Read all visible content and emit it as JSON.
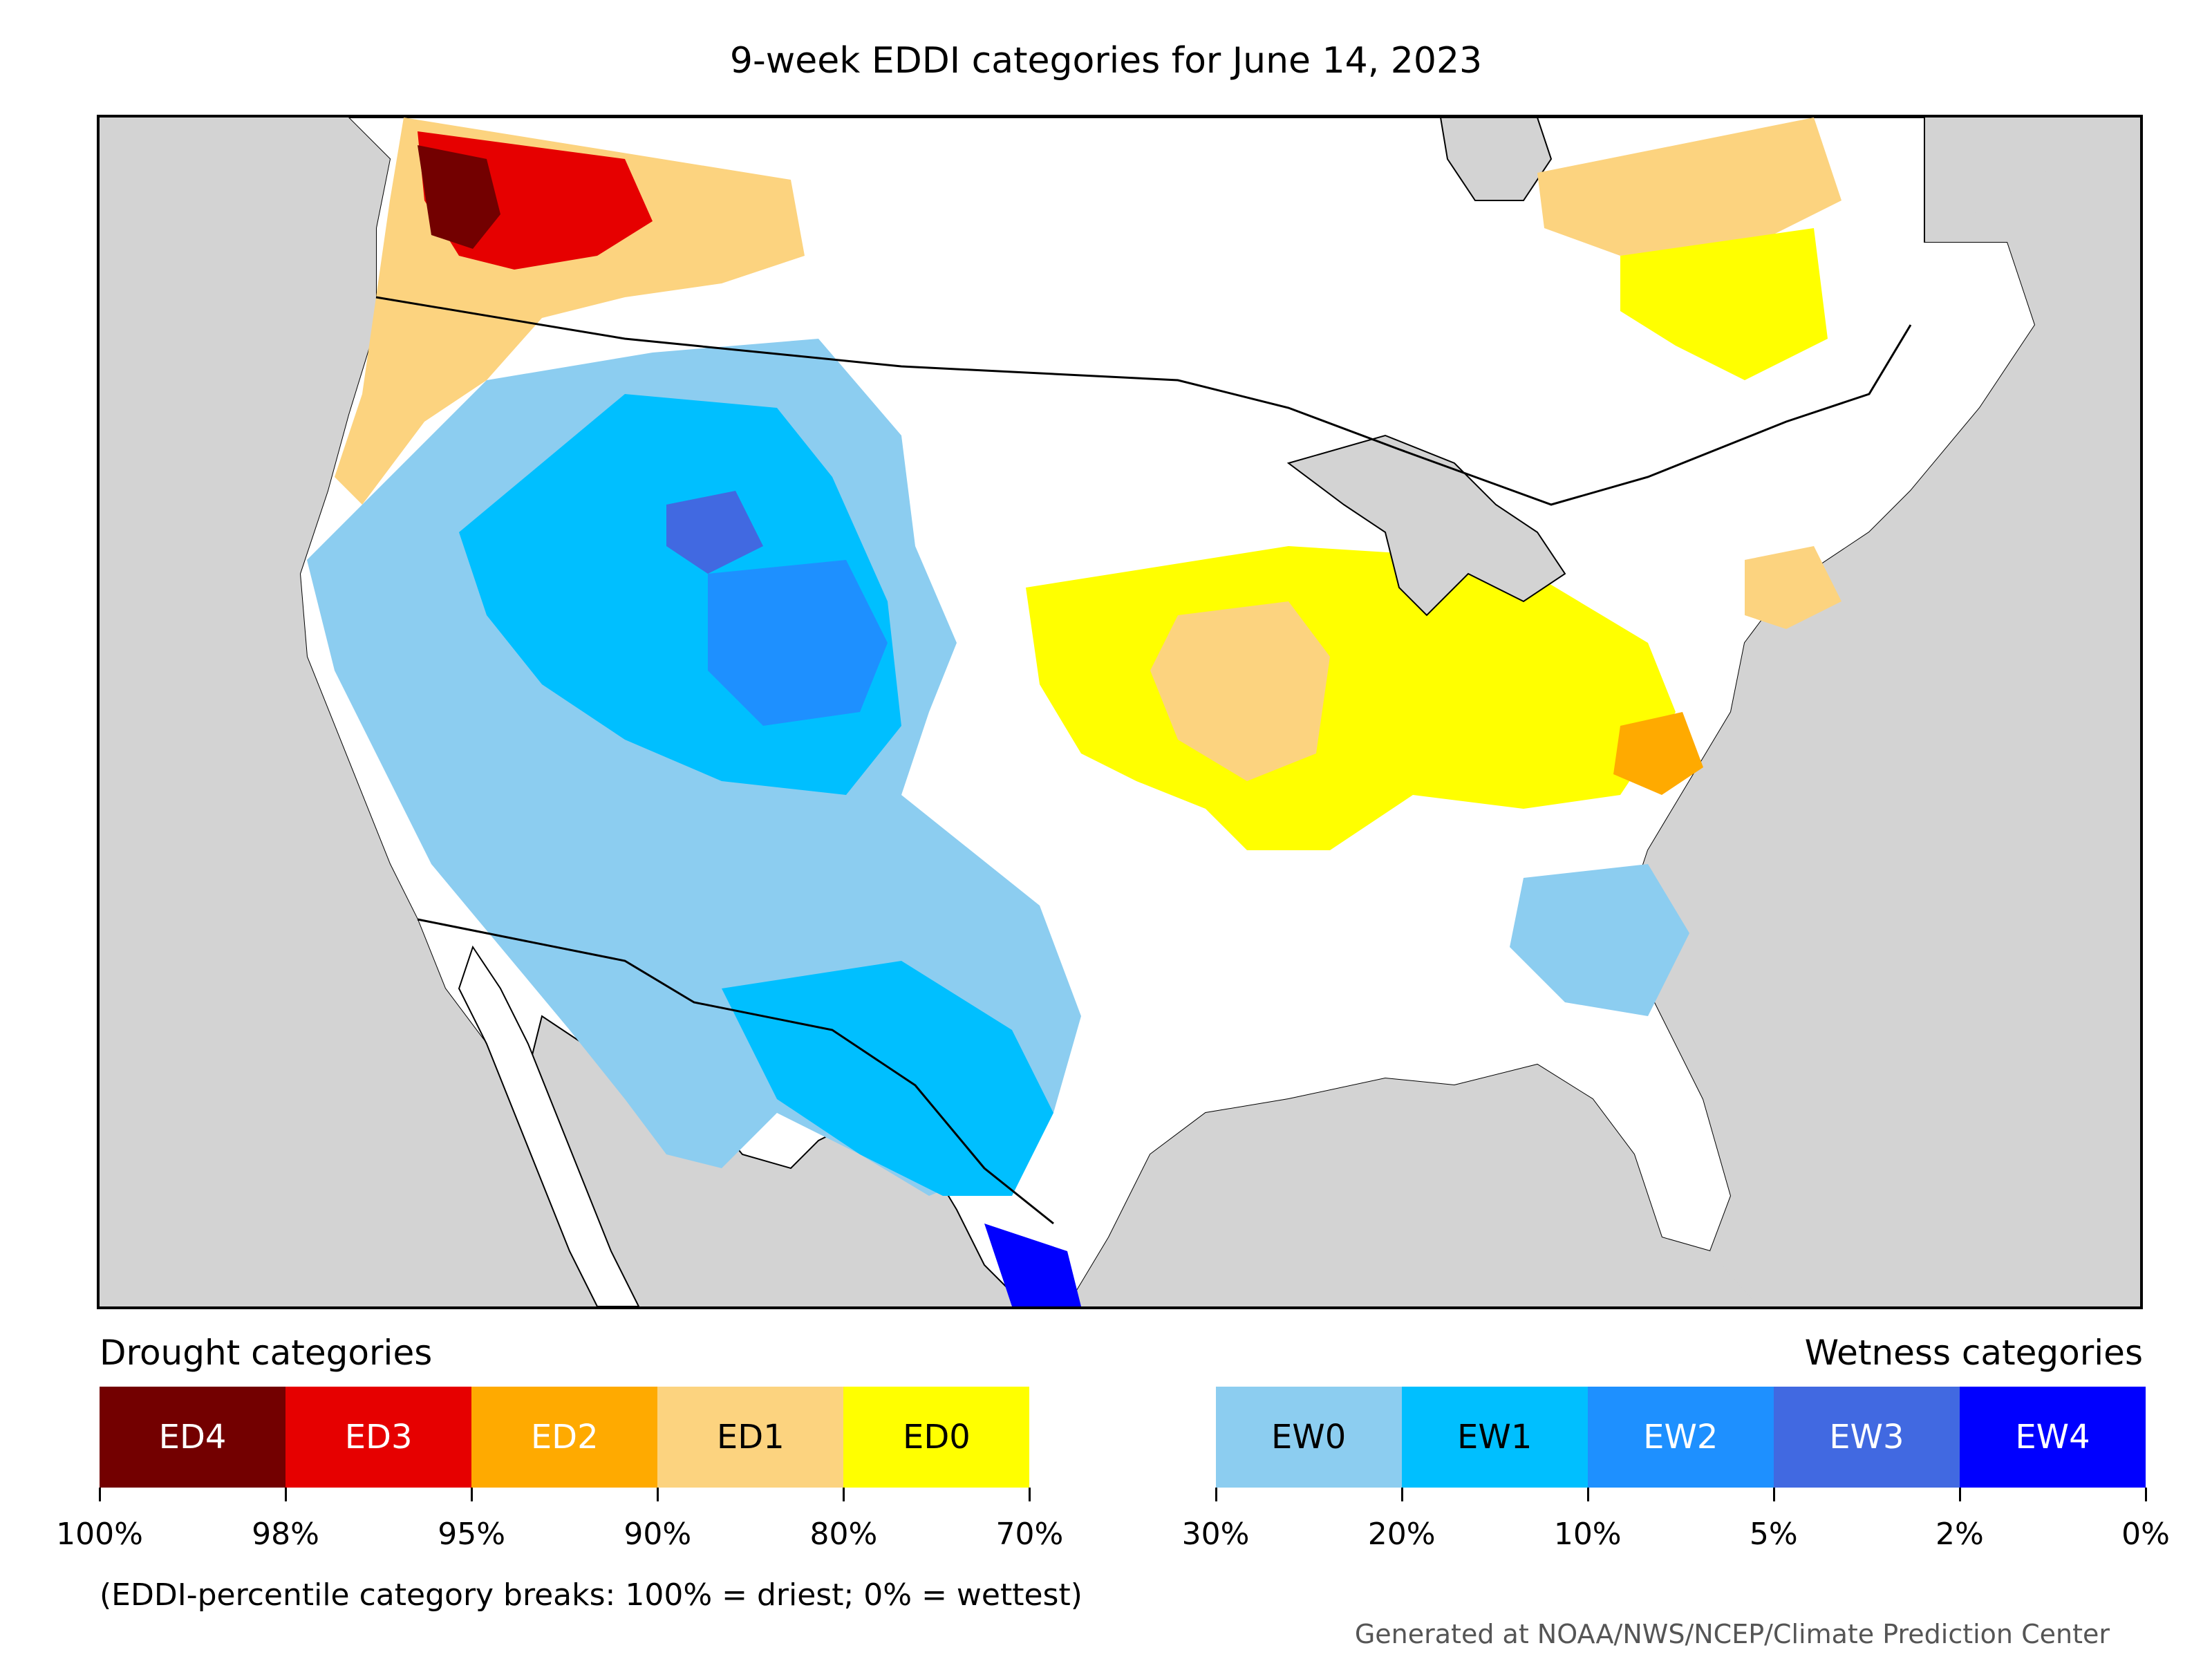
{
  "title": "9-week EDDI categories for June 14, 2023",
  "legend": {
    "left_label": "Drought categories",
    "right_label": "Wetness categories",
    "categories": [
      {
        "label": "ED4",
        "color": "#730000",
        "text": "light"
      },
      {
        "label": "ED3",
        "color": "#e60000",
        "text": "light"
      },
      {
        "label": "ED2",
        "color": "#ffaa00",
        "text": "light"
      },
      {
        "label": "ED1",
        "color": "#fcd37f",
        "text": "dark"
      },
      {
        "label": "ED0",
        "color": "#ffff00",
        "text": "dark"
      },
      {
        "label": "",
        "color": "#ffffff",
        "text": "dark"
      },
      {
        "label": "EW0",
        "color": "#8ccdf0",
        "text": "dark"
      },
      {
        "label": "EW1",
        "color": "#00bfff",
        "text": "dark"
      },
      {
        "label": "EW2",
        "color": "#1e90ff",
        "text": "light"
      },
      {
        "label": "EW3",
        "color": "#4169e1",
        "text": "light"
      },
      {
        "label": "EW4",
        "color": "#0000ff",
        "text": "light"
      }
    ],
    "ticks": [
      "100%",
      "98%",
      "95%",
      "90%",
      "80%",
      "70%",
      "30%",
      "20%",
      "10%",
      "5%",
      "2%",
      "0%"
    ]
  },
  "note": "(EDDI-percentile category breaks: 100% = driest; 0% = wettest)",
  "credit": "Generated at NOAA/NWS/NCEP/Climate Prediction Center",
  "map": {
    "background_color": "#d3d3d3",
    "land_color": "#ffffff",
    "water_color": "#d3d3d3"
  }
}
